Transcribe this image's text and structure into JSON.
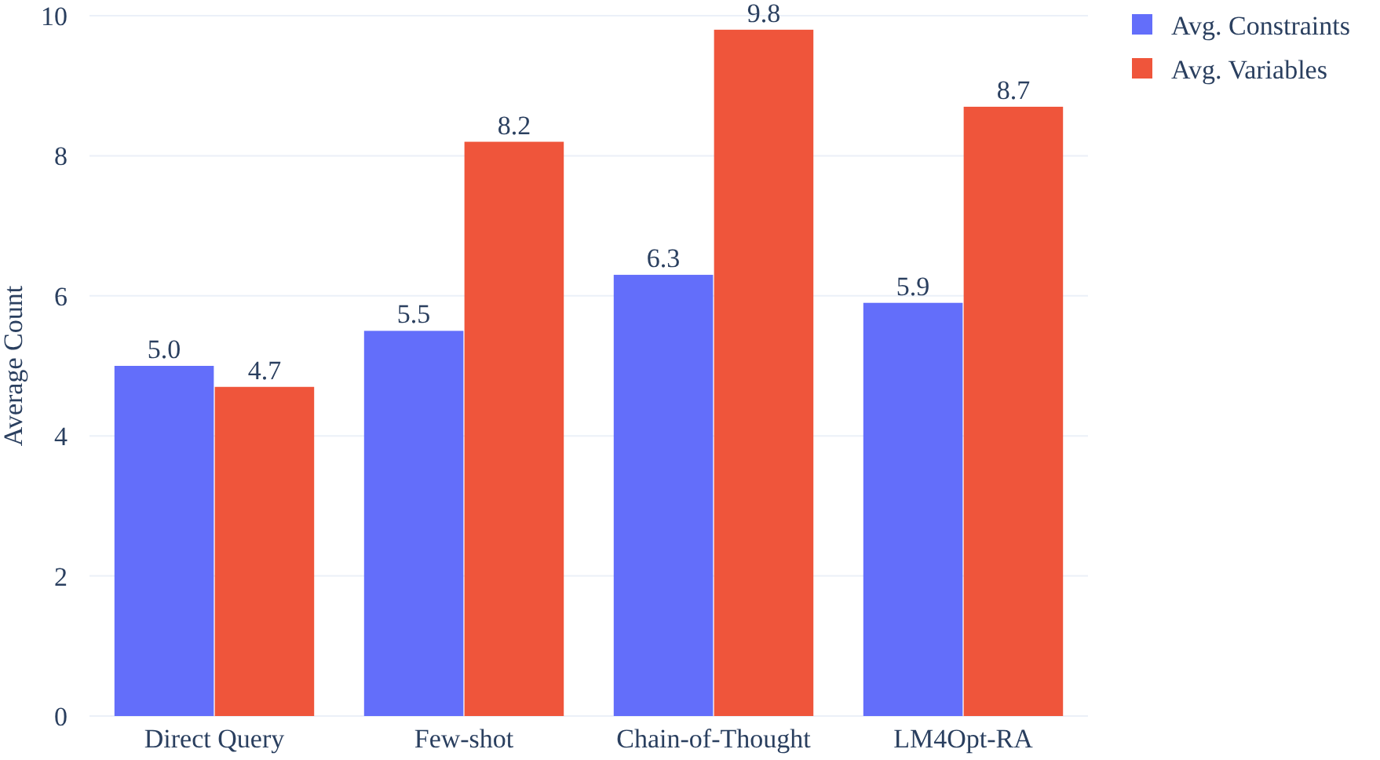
{
  "chart_data": {
    "type": "bar",
    "ylabel": "Average Count",
    "categories": [
      "Direct Query",
      "Few-shot",
      "Chain-of-Thought",
      "LM4Opt-RA"
    ],
    "series": [
      {
        "name": "Avg. Constraints",
        "color": "#636efa",
        "values": [
          5.0,
          5.5,
          6.3,
          5.9
        ],
        "value_labels": [
          "5.0",
          "5.5",
          "6.3",
          "5.9"
        ]
      },
      {
        "name": "Avg. Variables",
        "color": "#ef553b",
        "values": [
          4.7,
          8.2,
          9.8,
          8.7
        ],
        "value_labels": [
          "4.7",
          "8.2",
          "9.8",
          "8.7"
        ]
      }
    ],
    "ylim": [
      0,
      10
    ],
    "yticks": [
      0,
      2,
      4,
      6,
      8,
      10
    ],
    "grid": "y",
    "legend": "top right"
  }
}
